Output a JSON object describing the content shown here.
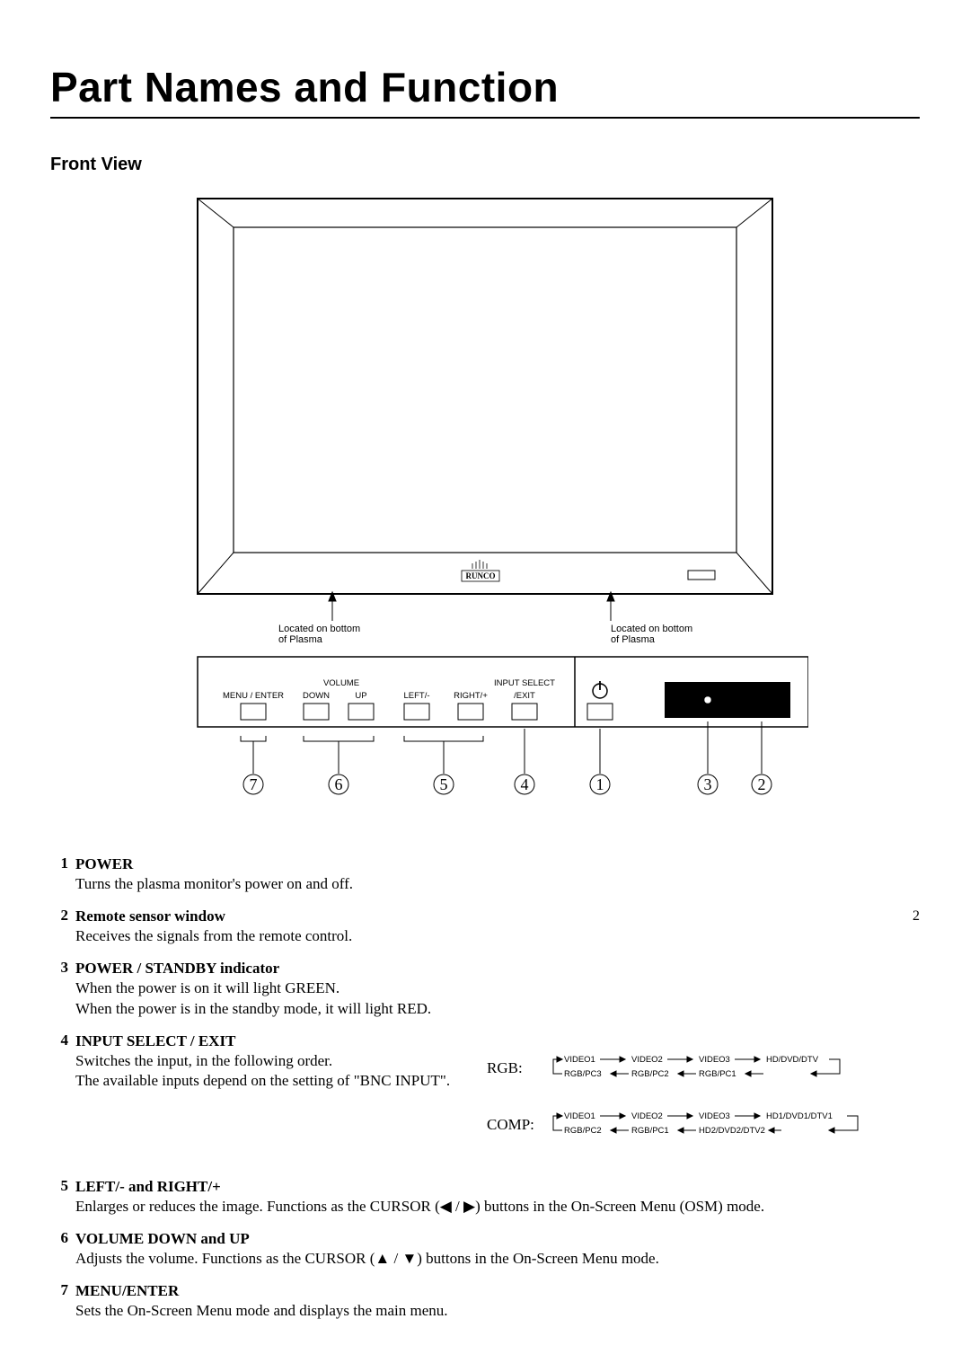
{
  "title": "Part Names and Function",
  "section": "Front View",
  "pageNumber": "2",
  "diagram": {
    "brand": "RUNCO",
    "note1": "Located on bottom\nof Plasma",
    "note2": "Located on bottom\nof Plasma",
    "panelLabels": {
      "menuEnter": "MENU / ENTER",
      "volume": "VOLUME",
      "down": "DOWN",
      "up": "UP",
      "left": "LEFT/-",
      "right": "RIGHT/+",
      "inputSelect": "INPUT SELECT",
      "exit": "/EXIT"
    },
    "callouts": [
      "7",
      "6",
      "5",
      "4",
      "1",
      "3",
      "2"
    ]
  },
  "leftItems": [
    {
      "num": "1",
      "label": "POWER",
      "desc": "Turns the plasma monitor's power on and off."
    },
    {
      "num": "2",
      "label": "Remote sensor window",
      "desc": "Receives the signals from the remote control."
    },
    {
      "num": "3",
      "label": "POWER / STANDBY indicator",
      "desc": "When the power is on it will light GREEN.\nWhen the power is in the standby mode, it will light RED."
    },
    {
      "num": "4",
      "label": "INPUT SELECT / EXIT",
      "desc": "Switches the input, in the following order.\nThe available inputs depend on the setting of \"BNC INPUT\"."
    }
  ],
  "rightItems": [
    {
      "num": "5",
      "label": "LEFT/- and RIGHT/+",
      "desc": "Enlarges or reduces the image. Functions as the CURSOR (◀ / ▶) buttons in the On-Screen Menu (OSM) mode."
    },
    {
      "num": "6",
      "label": "VOLUME DOWN and UP",
      "desc": "Adjusts the volume. Functions as the CURSOR (▲ / ▼) buttons in the On-Screen Menu mode."
    },
    {
      "num": "7",
      "label": "MENU/ENTER",
      "desc": "Sets the On-Screen Menu mode and displays the main menu."
    }
  ],
  "sequences": {
    "rgb": {
      "label": "RGB:",
      "top": [
        "VIDEO1",
        "VIDEO2",
        "VIDEO3",
        "HD/DVD/DTV"
      ],
      "bottom": [
        "RGB/PC3",
        "RGB/PC2",
        "RGB/PC1"
      ]
    },
    "comp": {
      "label": "COMP:",
      "top": [
        "VIDEO1",
        "VIDEO2",
        "VIDEO3",
        "HD1/DVD1/DTV1"
      ],
      "bottom": [
        "RGB/PC2",
        "RGB/PC1",
        "HD2/DVD2/DTV2"
      ]
    }
  },
  "style": {
    "textColor": "#000000",
    "accentColor": "#000000",
    "background": "#ffffff",
    "lineColor": "#000000",
    "fillDark": "#000000",
    "fontSizes": {
      "title": 46,
      "section": 20,
      "body": 17,
      "small": 11,
      "tiny": 9
    }
  }
}
